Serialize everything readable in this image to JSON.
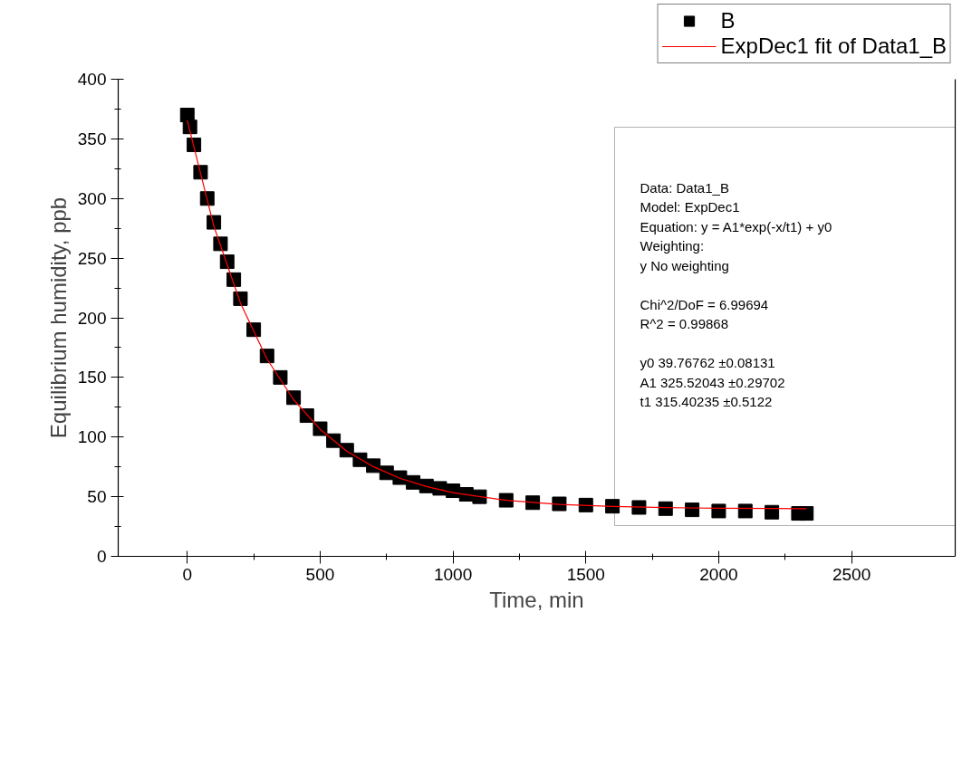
{
  "chart_data": {
    "type": "scatter",
    "xlabel": "Time, min",
    "ylabel": "Equilibrium humidity, ppb",
    "xlim": [
      -260,
      2890
    ],
    "ylim": [
      0,
      400
    ],
    "xticks": [
      0,
      500,
      1000,
      1500,
      2000,
      2500
    ],
    "yticks": [
      0,
      50,
      100,
      150,
      200,
      250,
      300,
      350,
      400
    ],
    "legend": "top right",
    "grid": false,
    "series": [
      {
        "name": "B",
        "color": "#000000",
        "marker": "square",
        "x": [
          0,
          10,
          25,
          50,
          75,
          100,
          125,
          150,
          175,
          200,
          250,
          300,
          350,
          400,
          450,
          500,
          550,
          600,
          650,
          700,
          750,
          800,
          850,
          900,
          950,
          1000,
          1050,
          1100,
          1200,
          1300,
          1400,
          1500,
          1600,
          1700,
          1800,
          1900,
          2000,
          2100,
          2200,
          2300,
          2330
        ],
        "values": [
          370,
          360,
          345,
          322,
          300,
          280,
          262,
          247,
          232,
          216,
          190,
          168,
          150,
          133,
          118,
          107,
          97,
          89,
          81,
          76,
          70,
          66,
          62,
          59,
          57,
          55,
          52,
          50,
          47,
          45,
          44,
          43,
          42,
          41,
          40,
          39,
          38,
          38,
          37,
          36,
          36
        ]
      },
      {
        "name": "ExpDec1 fit of Data1_B",
        "color": "#ff0000",
        "type": "line",
        "x": [
          0,
          100,
          200,
          300,
          400,
          500,
          600,
          700,
          800,
          900,
          1000,
          1200,
          1400,
          1600,
          1800,
          2000,
          2200,
          2330
        ],
        "values": [
          365.3,
          276.8,
          212.4,
          165.5,
          131.3,
          106.5,
          88.3,
          75.2,
          65.5,
          58.5,
          53.4,
          47.0,
          43.6,
          41.8,
          40.9,
          40.3,
          40.1,
          40.0
        ]
      }
    ],
    "annotations": [
      "Data: Data1_B",
      "Model: ExpDec1",
      "Equation: y = A1*exp(-x/t1) + y0",
      "Weighting:",
      "y         No weighting",
      "Chi^2/DoF       = 6.99694",
      "R^2    =  0.99868",
      "y0        39.76762         ±0.08131",
      "A1        325.52043       ±0.29702",
      "t1         315.40235       ±0.5122"
    ]
  }
}
